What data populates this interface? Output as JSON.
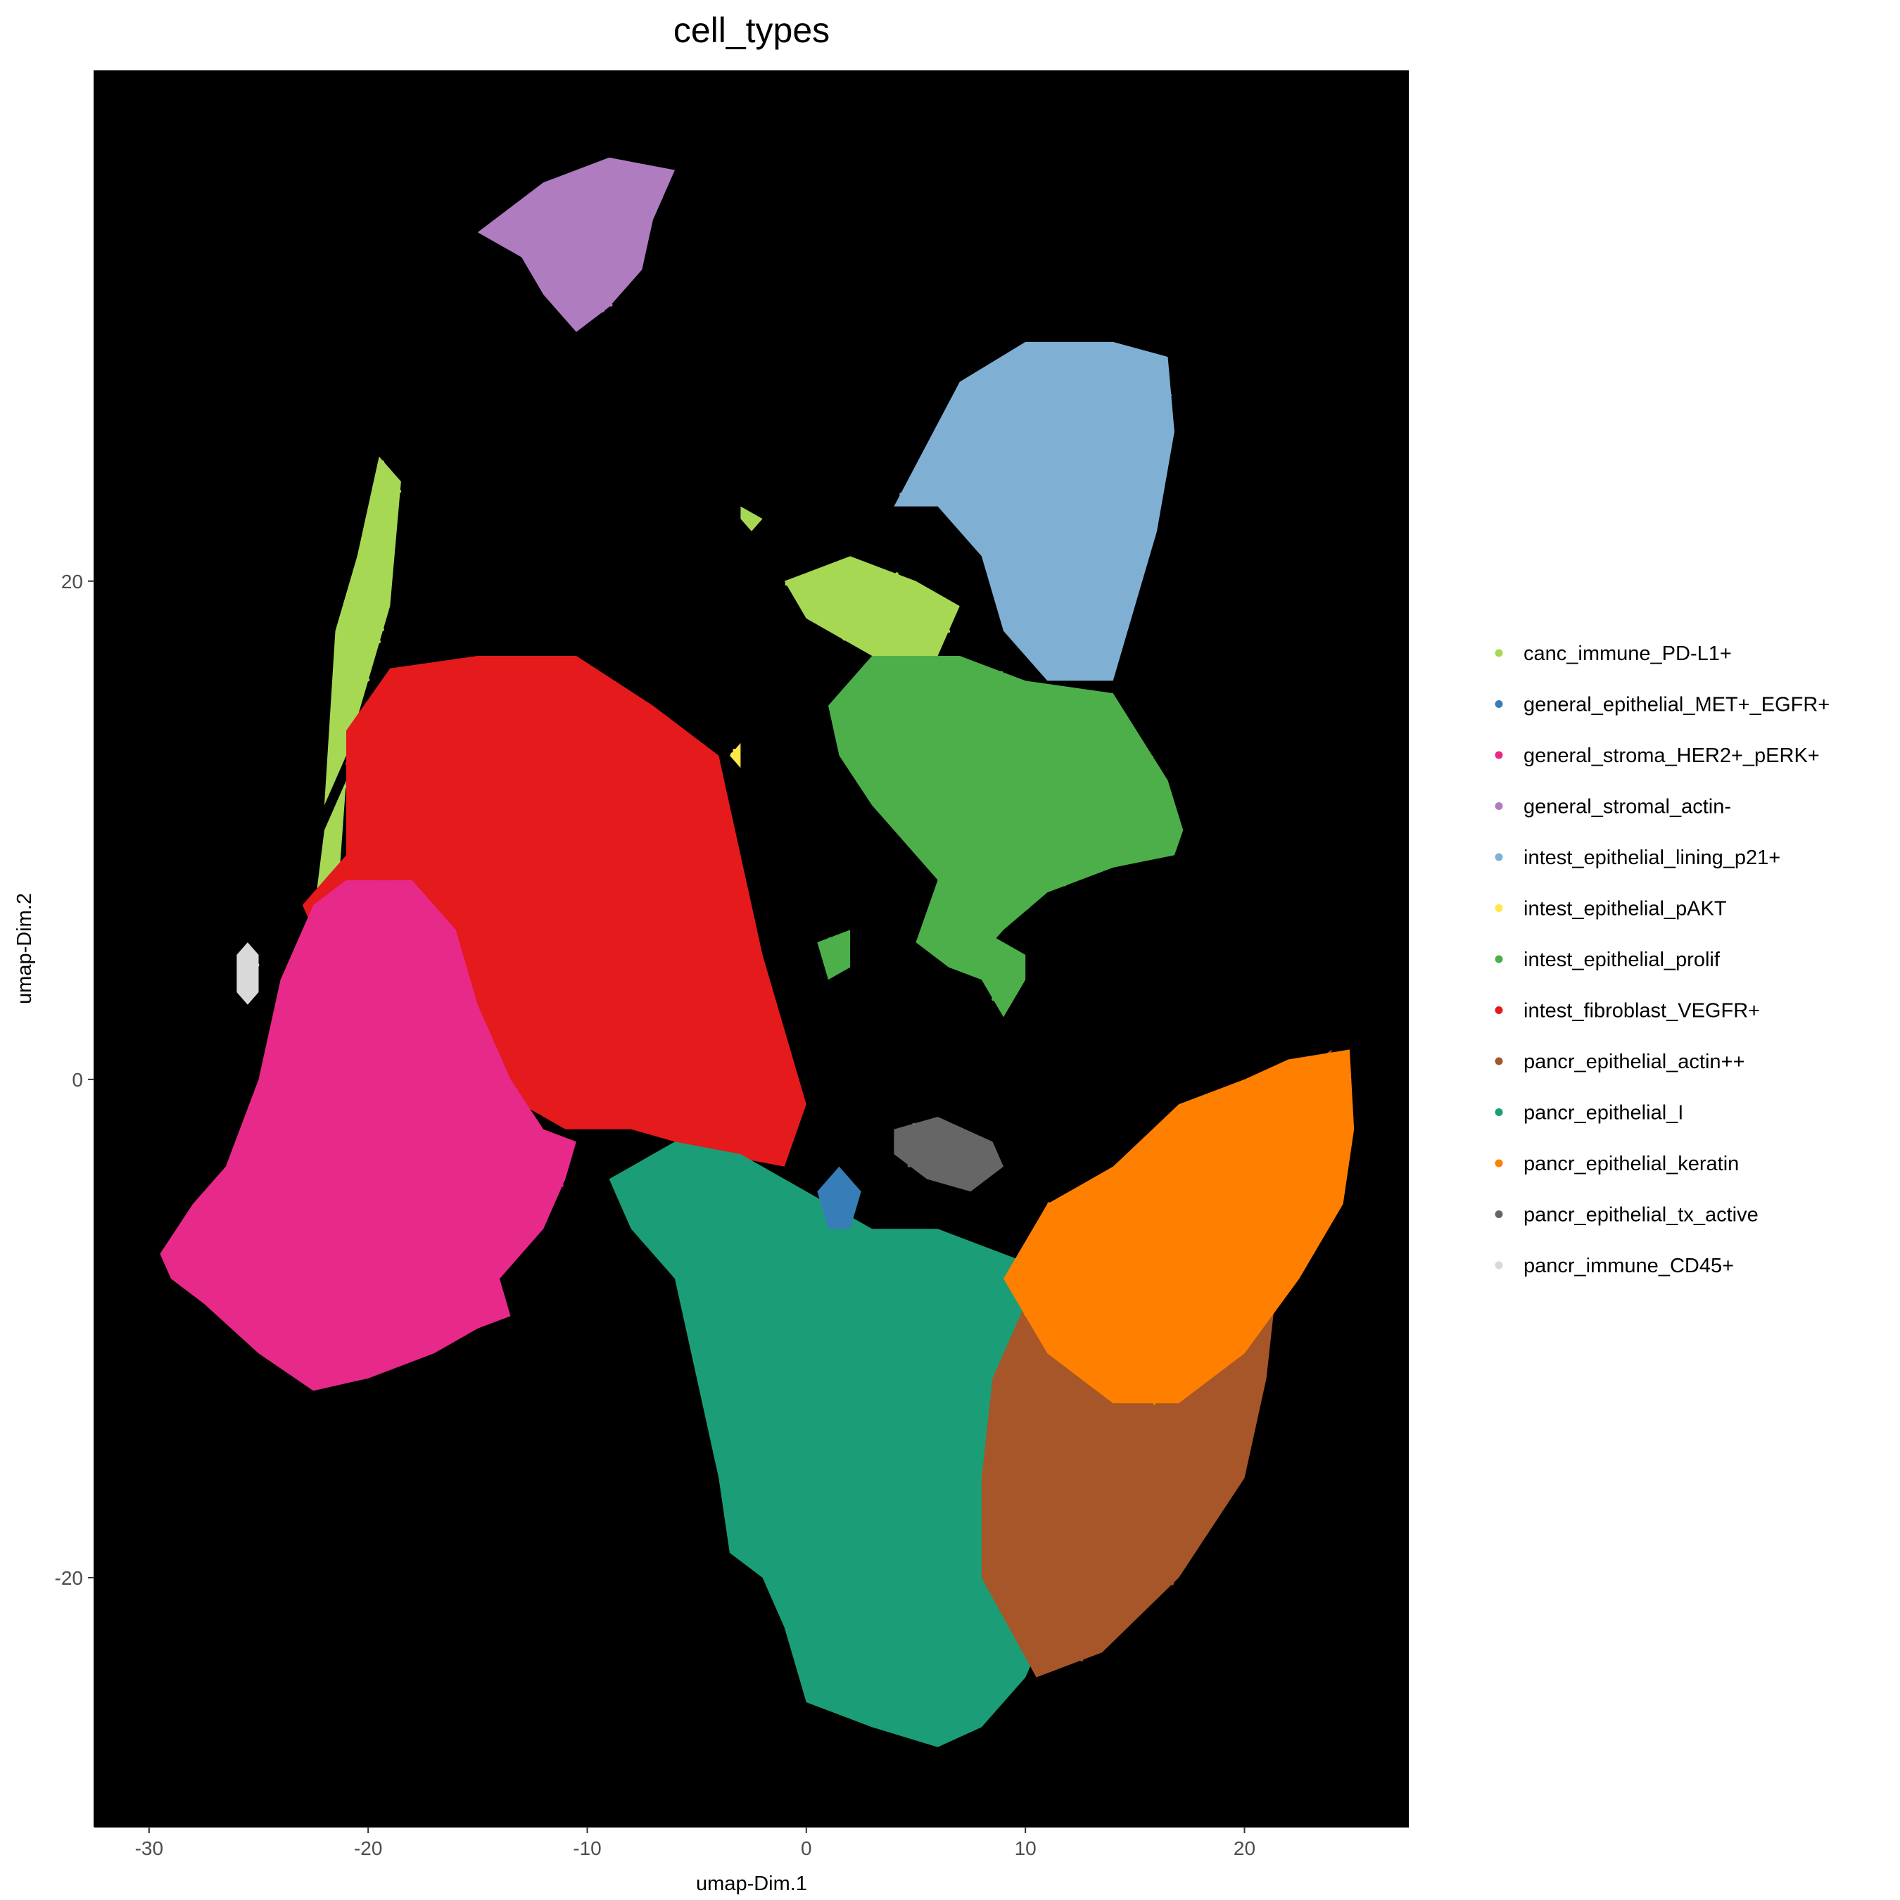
{
  "chart_data": {
    "type": "scatter",
    "title": "cell_types",
    "xlabel": "umap-Dim.1",
    "ylabel": "umap-Dim.2",
    "xlim": [
      -32.5,
      27.5
    ],
    "ylim": [
      -30,
      40.5
    ],
    "x_ticks": [
      -30,
      -20,
      -10,
      0,
      10,
      20
    ],
    "y_ticks": [
      -20,
      0,
      20
    ],
    "background": "#000000",
    "grid": false,
    "legend_position": "right",
    "series": [
      {
        "name": "canc_immune_PD-L1+",
        "color": "#a6d854"
      },
      {
        "name": "general_epithelial_MET+_EGFR+",
        "color": "#377eb8"
      },
      {
        "name": "general_stroma_HER2+_pERK+",
        "color": "#e7298a"
      },
      {
        "name": "general_stromal_actin-",
        "color": "#b07cc0"
      },
      {
        "name": "intest_epithelial_lining_p21+",
        "color": "#7fb0d4"
      },
      {
        "name": "intest_epithelial_pAKT",
        "color": "#ffe84a"
      },
      {
        "name": "intest_epithelial_prolif",
        "color": "#4daf4a"
      },
      {
        "name": "intest_fibroblast_VEGFR+",
        "color": "#e41a1c"
      },
      {
        "name": "pancr_epithelial_actin++",
        "color": "#a65628"
      },
      {
        "name": "pancr_epithelial_I",
        "color": "#1b9e77"
      },
      {
        "name": "pancr_epithelial_keratin",
        "color": "#ff7f00"
      },
      {
        "name": "pancr_epithelial_tx_active",
        "color": "#666666"
      },
      {
        "name": "pancr_immune_CD45+",
        "color": "#d9d9d9"
      }
    ],
    "clusters": [
      {
        "series": 3,
        "polygon": [
          [
            -15,
            34
          ],
          [
            -12,
            36
          ],
          [
            -9,
            37
          ],
          [
            -6,
            36.5
          ],
          [
            -7,
            34.5
          ],
          [
            -7.5,
            32.5
          ],
          [
            -9,
            31
          ],
          [
            -10.5,
            30
          ],
          [
            -12,
            31.5
          ],
          [
            -13,
            33
          ]
        ]
      },
      {
        "series": 4,
        "polygon": [
          [
            4,
            23
          ],
          [
            7,
            28
          ],
          [
            10,
            29.6
          ],
          [
            14,
            29.6
          ],
          [
            16.5,
            29
          ],
          [
            16.8,
            26
          ],
          [
            16,
            22
          ],
          [
            15,
            19
          ],
          [
            14,
            16
          ],
          [
            11,
            16
          ],
          [
            9,
            18
          ],
          [
            8,
            21
          ],
          [
            6,
            23
          ]
        ]
      },
      {
        "series": 0,
        "polygon": [
          [
            -21.5,
            18
          ],
          [
            -20.5,
            21
          ],
          [
            -19.5,
            25
          ],
          [
            -18.5,
            24
          ],
          [
            -19,
            19
          ],
          [
            -20,
            16
          ],
          [
            -21,
            13
          ],
          [
            -22,
            11
          ]
        ]
      },
      {
        "series": 0,
        "polygon": [
          [
            -22,
            10
          ],
          [
            -21,
            12
          ],
          [
            -21.5,
            6
          ],
          [
            -23,
            4
          ],
          [
            -24,
            1
          ],
          [
            -25,
            -3
          ],
          [
            -26,
            -6
          ],
          [
            -25,
            -5
          ],
          [
            -24,
            -1
          ],
          [
            -23,
            3
          ]
        ]
      },
      {
        "series": 0,
        "polygon": [
          [
            -3,
            23
          ],
          [
            -2,
            22.5
          ],
          [
            -2.5,
            22
          ],
          [
            -3,
            22.5
          ]
        ]
      },
      {
        "series": 0,
        "polygon": [
          [
            -1,
            20
          ],
          [
            2,
            21
          ],
          [
            5,
            20
          ],
          [
            7,
            19
          ],
          [
            6,
            17
          ],
          [
            3,
            17
          ],
          [
            0,
            18.5
          ]
        ]
      },
      {
        "series": 6,
        "polygon": [
          [
            1,
            15
          ],
          [
            3,
            17
          ],
          [
            7,
            17
          ],
          [
            10,
            16
          ],
          [
            14,
            15.5
          ],
          [
            16.5,
            12
          ],
          [
            17.2,
            10
          ],
          [
            16.8,
            9
          ],
          [
            14,
            8.5
          ],
          [
            11,
            7.5
          ],
          [
            9,
            6
          ],
          [
            8,
            5
          ],
          [
            6.5,
            4.5
          ],
          [
            5,
            5.5
          ],
          [
            6,
            8
          ],
          [
            3,
            11
          ],
          [
            1.5,
            13
          ]
        ]
      },
      {
        "series": 6,
        "polygon": [
          [
            5.5,
            6
          ],
          [
            8,
            6
          ],
          [
            10,
            5
          ],
          [
            10,
            4
          ],
          [
            9,
            2.5
          ],
          [
            8,
            4
          ],
          [
            6.5,
            4.5
          ]
        ]
      },
      {
        "series": 6,
        "polygon": [
          [
            0.5,
            5.5
          ],
          [
            2,
            6
          ],
          [
            2,
            4.5
          ],
          [
            1,
            4
          ]
        ]
      },
      {
        "series": 7,
        "polygon": [
          [
            -23,
            7
          ],
          [
            -21,
            9
          ],
          [
            -21,
            14
          ],
          [
            -19,
            16.5
          ],
          [
            -15,
            17
          ],
          [
            -10.5,
            17
          ],
          [
            -7,
            15
          ],
          [
            -4,
            13
          ],
          [
            -3,
            9
          ],
          [
            -2,
            5
          ],
          [
            -1,
            2
          ],
          [
            0,
            -1
          ],
          [
            -1,
            -3.5
          ],
          [
            -4,
            -3
          ],
          [
            -8,
            -2
          ],
          [
            -11,
            -2
          ],
          [
            -13,
            -1
          ],
          [
            -16,
            2
          ],
          [
            -20,
            4
          ],
          [
            -22,
            5
          ]
        ]
      },
      {
        "series": 2,
        "polygon": [
          [
            -29.5,
            -7
          ],
          [
            -28,
            -5
          ],
          [
            -26.5,
            -3.5
          ],
          [
            -25,
            0
          ],
          [
            -24,
            4
          ],
          [
            -22.5,
            7
          ],
          [
            -21,
            8
          ],
          [
            -18,
            8
          ],
          [
            -16,
            6
          ],
          [
            -15,
            3
          ],
          [
            -13.5,
            0
          ],
          [
            -12,
            -2
          ],
          [
            -10.5,
            -2.5
          ],
          [
            -11,
            -4
          ],
          [
            -12,
            -6
          ],
          [
            -14,
            -8
          ],
          [
            -13.5,
            -9.5
          ],
          [
            -15,
            -10
          ],
          [
            -17,
            -11
          ],
          [
            -20,
            -12
          ],
          [
            -22.5,
            -12.5
          ],
          [
            -25,
            -11
          ],
          [
            -27.5,
            -9
          ],
          [
            -29,
            -8
          ]
        ]
      },
      {
        "series": 9,
        "polygon": [
          [
            -9,
            -4
          ],
          [
            -6,
            -2.5
          ],
          [
            -3,
            -3
          ],
          [
            -1,
            -4
          ],
          [
            1,
            -5
          ],
          [
            3,
            -6
          ],
          [
            6,
            -6
          ],
          [
            9,
            -7
          ],
          [
            12,
            -8
          ],
          [
            14,
            -10
          ],
          [
            14,
            -16
          ],
          [
            12,
            -20
          ],
          [
            10,
            -24
          ],
          [
            8,
            -26
          ],
          [
            6,
            -26.8
          ],
          [
            3,
            -26
          ],
          [
            0,
            -25
          ],
          [
            -1,
            -22
          ],
          [
            -2,
            -20
          ],
          [
            -3.5,
            -19
          ],
          [
            -4,
            -16
          ],
          [
            -5,
            -12
          ],
          [
            -6,
            -8
          ],
          [
            -8,
            -6
          ]
        ]
      },
      {
        "series": 8,
        "polygon": [
          [
            8.5,
            -12
          ],
          [
            11,
            -7
          ],
          [
            14,
            -6
          ],
          [
            17,
            -4
          ],
          [
            20,
            -2
          ],
          [
            22,
            0
          ],
          [
            24,
            1.2
          ],
          [
            23,
            -2
          ],
          [
            22,
            -5
          ],
          [
            21.5,
            -8
          ],
          [
            21,
            -12
          ],
          [
            20,
            -16
          ],
          [
            17,
            -20
          ],
          [
            13.5,
            -23
          ],
          [
            10.5,
            -24
          ],
          [
            8,
            -20
          ],
          [
            8,
            -16
          ]
        ]
      },
      {
        "series": 10,
        "polygon": [
          [
            9,
            -8
          ],
          [
            11,
            -5
          ],
          [
            14,
            -3.5
          ],
          [
            17,
            -1
          ],
          [
            20,
            0
          ],
          [
            22,
            0.8
          ],
          [
            24.8,
            1.2
          ],
          [
            25,
            -2
          ],
          [
            24.5,
            -5
          ],
          [
            22.5,
            -8
          ],
          [
            20,
            -11
          ],
          [
            17,
            -13
          ],
          [
            14,
            -13
          ],
          [
            11,
            -11
          ]
        ]
      },
      {
        "series": 11,
        "polygon": [
          [
            4,
            -2
          ],
          [
            6,
            -1.5
          ],
          [
            8.5,
            -2.5
          ],
          [
            9,
            -3.5
          ],
          [
            7.5,
            -4.5
          ],
          [
            5.5,
            -4
          ],
          [
            4,
            -3
          ]
        ]
      },
      {
        "series": 1,
        "polygon": [
          [
            0.5,
            -4.5
          ],
          [
            1.5,
            -3.5
          ],
          [
            2.5,
            -4.5
          ],
          [
            2,
            -6
          ],
          [
            1,
            -6
          ]
        ]
      },
      {
        "series": 12,
        "polygon": [
          [
            -26,
            5
          ],
          [
            -25.5,
            5.5
          ],
          [
            -25,
            5
          ],
          [
            -25,
            3.5
          ],
          [
            -25.5,
            3
          ],
          [
            -26,
            3.5
          ]
        ]
      },
      {
        "series": 5,
        "polygon": [
          [
            -3.5,
            13
          ],
          [
            -3,
            13.5
          ],
          [
            -3,
            12.5
          ]
        ]
      }
    ]
  }
}
